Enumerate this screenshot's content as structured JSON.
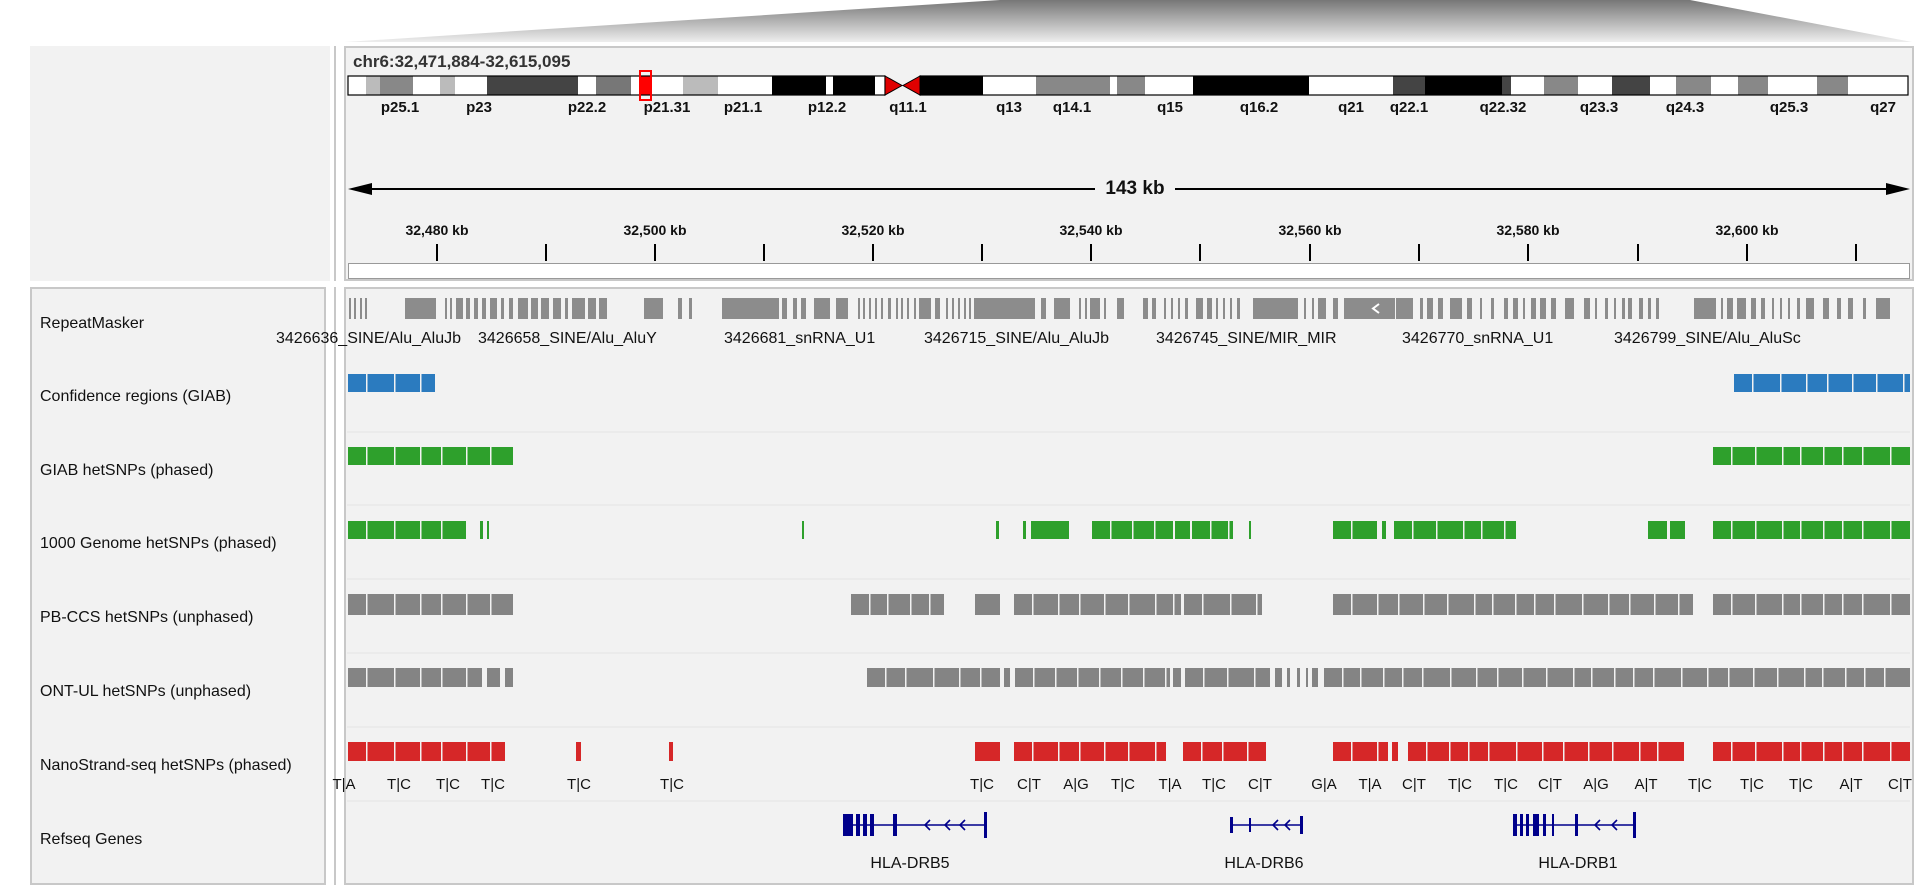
{
  "locus": "chr6:32,471,884-32,615,095",
  "span_label": "143 kb",
  "ideogram": {
    "bands": [
      "p25.1",
      "p23",
      "p22.2",
      "p21.31",
      "p21.1",
      "p12.2",
      "q11.1",
      "q13",
      "q14.1",
      "q15",
      "q16.2",
      "q21",
      "q22.1",
      "q22.32",
      "q23.3",
      "q24.3",
      "q25.3",
      "q27"
    ]
  },
  "ruler": {
    "ticks": [
      "32,480 kb",
      "32,500 kb",
      "32,520 kb",
      "32,540 kb",
      "32,560 kb",
      "32,580 kb",
      "32,600 kb"
    ]
  },
  "tracks": [
    {
      "id": "repeatmasker",
      "name": "RepeatMasker"
    },
    {
      "id": "giab-conf",
      "name": "Confidence regions (GIAB)"
    },
    {
      "id": "giab-het",
      "name": "GIAB hetSNPs (phased)"
    },
    {
      "id": "kg-het",
      "name": "1000 Genome hetSNPs (phased)"
    },
    {
      "id": "pbccs-het",
      "name": "PB-CCS hetSNPs (unphased)"
    },
    {
      "id": "ontul-het",
      "name": "ONT-UL hetSNPs (unphased)"
    },
    {
      "id": "nanostrand-het",
      "name": "NanoStrand-seq hetSNPs (phased)"
    },
    {
      "id": "refseq",
      "name": "Refseq Genes"
    }
  ],
  "repeat_labels": [
    "3426636_SINE/Alu_AluJb",
    "3426658_SINE/Alu_AluY",
    "3426681_snRNA_U1",
    "3426715_SINE/Alu_AluJb",
    "3426745_SINE/MIR_MIR",
    "3426770_snRNA_U1",
    "3426799_SINE/Alu_AluSc"
  ],
  "allele_labels": [
    "T|A",
    "T|C",
    "T|C",
    "T|C",
    "T|C",
    "T|C",
    "T|C",
    "C|T",
    "A|G",
    "T|C",
    "T|A",
    "T|C",
    "C|T",
    "G|A",
    "T|A",
    "C|T",
    "T|C",
    "T|C",
    "C|T",
    "A|G",
    "A|T",
    "T|C",
    "T|C",
    "T|C",
    "A|T",
    "C|T"
  ],
  "genes": [
    "HLA-DRB5",
    "HLA-DRB6",
    "HLA-DRB1"
  ],
  "colors": {
    "confidence": "#2b7bbf",
    "phased": "#2ea02c",
    "unphased": "#848484",
    "nanostrand": "#d62728",
    "gene": "#00008b",
    "repeat": "#8c8c8c"
  }
}
